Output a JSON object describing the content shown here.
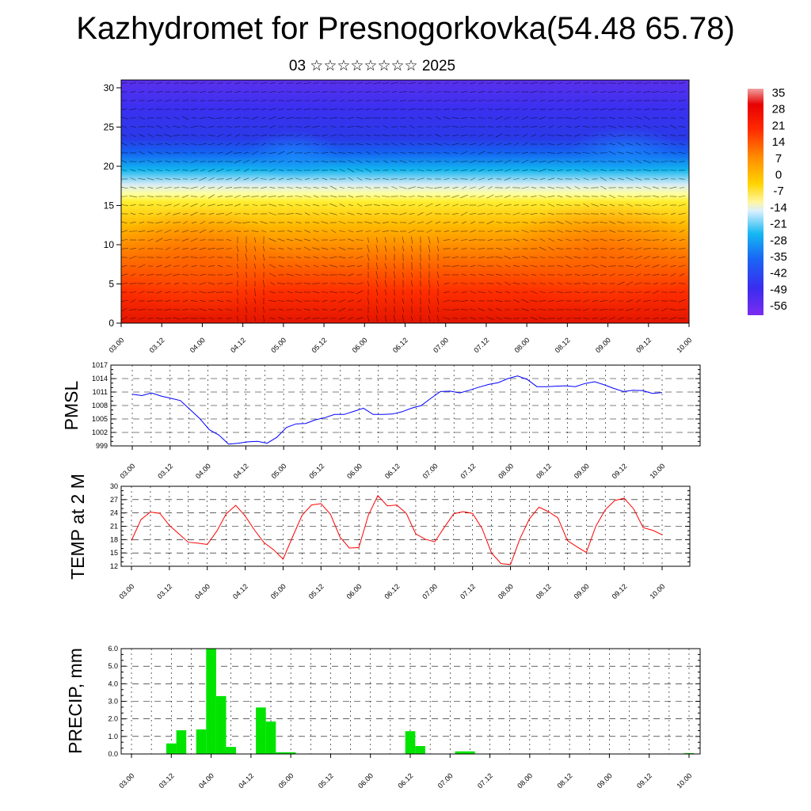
{
  "header": {
    "title": "Kazhydromet for Presnogorkovka(54.48 65.78)",
    "subtitle": "03 ☆☆☆☆☆☆☆☆ 2025"
  },
  "colors": {
    "pmsl": "#0000ff",
    "temp": "#ff0000",
    "precip": "#00e400"
  },
  "chart_data": [
    {
      "type": "heatmap",
      "title": "Kazhydromet for Presnogorkovka(54.48 65.78)",
      "subtitle": "03 ☆☆☆☆☆☆☆☆ 2025",
      "x_ticks": [
        "03.00",
        "03.12",
        "04.00",
        "04.12",
        "05.00",
        "05.12",
        "06.00",
        "06.12",
        "07.00",
        "07.12",
        "08.00",
        "08.12",
        "09.00",
        "09.12",
        "10.00"
      ],
      "y_ticks": [
        0,
        5,
        10,
        15,
        20,
        25,
        30
      ],
      "ylim": [
        0,
        31
      ],
      "colorbar_labels": [
        "35",
        "28",
        "21",
        "14",
        "7",
        "0",
        "-7",
        "-14",
        "-21",
        "-28",
        "-35",
        "-42",
        "-49",
        "-56"
      ],
      "colorbar_range": [
        -63,
        42
      ],
      "overlay": "wind vectors"
    },
    {
      "type": "line",
      "ylabel": "PMSL",
      "x_ticks": [
        "03.00",
        "03.12",
        "04.00",
        "04.12",
        "05.00",
        "05.12",
        "06.00",
        "06.12",
        "07.00",
        "07.12",
        "08.00",
        "08.12",
        "09.00",
        "09.12",
        "10.00"
      ],
      "y_ticks": [
        999,
        1002,
        1005,
        1008,
        1011,
        1014,
        1017
      ],
      "ylim": [
        999,
        1017
      ],
      "grid": true,
      "series": [
        {
          "values": [
            1010.5,
            1010.2,
            1010.8,
            1010.1,
            1009.6,
            1009.1,
            1007.1,
            1005.1,
            1002.6,
            1001.4,
            999.4,
            999.6,
            999.9,
            1000.0,
            999.6,
            1000.9,
            1003.1,
            1003.9,
            1004.0,
            1004.8,
            1005.3,
            1006.0,
            1006.0,
            1006.7,
            1007.4,
            1006.0,
            1006.0,
            1006.1,
            1006.6,
            1007.4,
            1008.0,
            1009.6,
            1011.1,
            1011.2,
            1010.8,
            1011.4,
            1012.1,
            1012.7,
            1013.1,
            1014.0,
            1014.6,
            1013.8,
            1012.2,
            1012.2,
            1012.3,
            1012.4,
            1012.2,
            1012.9,
            1013.3,
            1012.6,
            1011.8,
            1011.1,
            1011.4,
            1011.3,
            1010.7,
            1010.9
          ]
        }
      ]
    },
    {
      "type": "line",
      "ylabel": "TEMP at 2 M",
      "x_ticks": [
        "03.00",
        "03.12",
        "04.00",
        "04.12",
        "05.00",
        "05.12",
        "06.00",
        "06.12",
        "07.00",
        "07.12",
        "08.00",
        "08.12",
        "09.00",
        "09.12",
        "10.00"
      ],
      "y_ticks": [
        12,
        15,
        18,
        21,
        24,
        27,
        30
      ],
      "ylim": [
        12,
        30
      ],
      "grid": true,
      "series": [
        {
          "values": [
            17.8,
            22.5,
            24.2,
            23.9,
            21.2,
            19.3,
            17.4,
            17.2,
            16.9,
            19.9,
            23.8,
            25.7,
            23.3,
            20.1,
            17.3,
            15.7,
            13.6,
            18.6,
            23.5,
            25.8,
            26.1,
            23.7,
            18.6,
            16.1,
            16.2,
            23.5,
            27.9,
            25.6,
            25.8,
            23.9,
            19.3,
            18.1,
            17.5,
            20.7,
            23.8,
            24.3,
            23.9,
            20.5,
            15.0,
            12.6,
            12.4,
            18.2,
            22.7,
            25.3,
            24.3,
            22.9,
            17.8,
            16.4,
            15.1,
            21.0,
            24.7,
            26.8,
            27.3,
            24.9,
            20.7,
            20.1,
            19.1
          ]
        }
      ]
    },
    {
      "type": "bar",
      "ylabel": "PRECIP, mm",
      "x_ticks": [
        "03.00",
        "03.12",
        "04.00",
        "04.12",
        "05.00",
        "05.12",
        "06.00",
        "06.12",
        "07.00",
        "07.12",
        "08.00",
        "08.12",
        "09.00",
        "09.12",
        "10.00"
      ],
      "y_ticks": [
        "0.0",
        "1.0",
        "2.0",
        "3.0",
        "4.0",
        "5.0",
        "6.0"
      ],
      "ylim": [
        0,
        6
      ],
      "grid": true,
      "series": [
        {
          "values": [
            0,
            0,
            0,
            0,
            0.6,
            1.35,
            0,
            1.4,
            6.0,
            3.3,
            0.4,
            0,
            0,
            2.65,
            1.85,
            0.1,
            0.1,
            0,
            0,
            0,
            0,
            0,
            0,
            0,
            0,
            0,
            0,
            0,
            1.3,
            0.45,
            0,
            0,
            0,
            0.15,
            0.15,
            0,
            0,
            0,
            0,
            0,
            0,
            0,
            0,
            0,
            0,
            0,
            0,
            0,
            0,
            0,
            0,
            0,
            0,
            0,
            0,
            0,
            0.05
          ]
        }
      ]
    }
  ]
}
